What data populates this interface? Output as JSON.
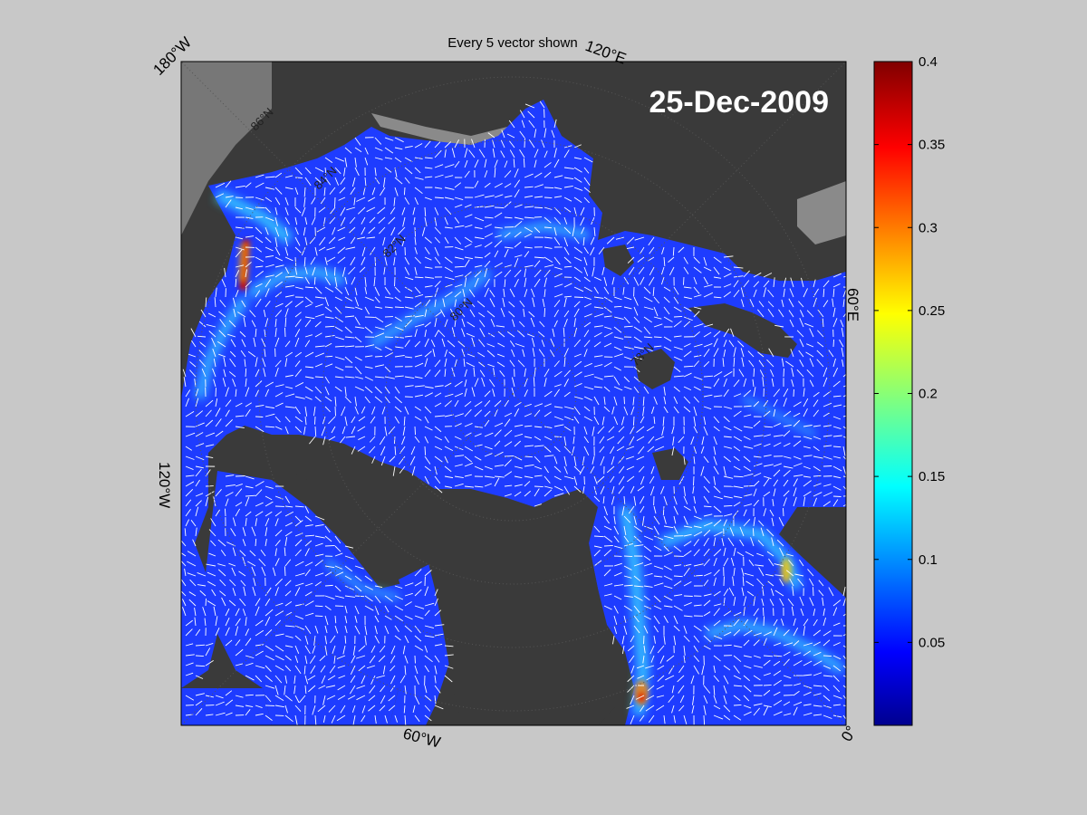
{
  "figure": {
    "title": "Every 5 vector shown",
    "date": "25-Dec-2009"
  },
  "map": {
    "corner_labels": {
      "top_left": "180°W",
      "top_right": "120°E",
      "right": "60°E",
      "bottom_right": "0°",
      "bottom": "60°W",
      "left": "120°W"
    },
    "parallel_labels": [
      "86°N",
      "84°N",
      "82°N",
      "80°N",
      "78°N"
    ],
    "colors": {
      "land": "#3a3a3a",
      "land_outside": "#777777",
      "ice_shelf": "#8a8a8a",
      "ocean_base": "#1e3cff",
      "vectors": "#ffffff"
    }
  },
  "colorbar": {
    "ticks": [
      "0.4",
      "0.35",
      "0.3",
      "0.25",
      "0.2",
      "0.15",
      "0.1",
      "0.05"
    ],
    "range": [
      0,
      0.4
    ],
    "colormap": "jet"
  }
}
